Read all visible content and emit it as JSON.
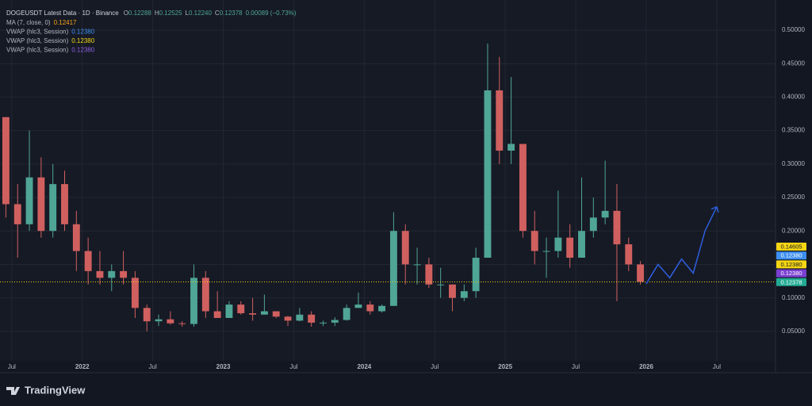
{
  "chart_data": {
    "type": "candlestick",
    "legend": {
      "title": "DOGEUSDT Latest Data · 1D · Binance",
      "ohlc": [
        {
          "label": "O",
          "value": "0.12288"
        },
        {
          "label": "H",
          "value": "0.12525"
        },
        {
          "label": "L",
          "value": "0.12240"
        },
        {
          "label": "C",
          "value": "0.12378"
        }
      ],
      "change": "0.00089 (−0.73%)",
      "indicators": [
        {
          "name": "MA (7, close, 0)",
          "value": "0.12417",
          "color": "#f7a21b"
        },
        {
          "name": "VWAP (hlc3, Session)",
          "value": "0.12380",
          "color": "#3d8ff0"
        },
        {
          "name": "VWAP (hlc3, Session)",
          "value": "0.12380",
          "color": "#f5d614"
        },
        {
          "name": "VWAP (hlc3, Session)",
          "value": "0.12380",
          "color": "#8e5fe0"
        }
      ]
    },
    "x": [
      "2021-06",
      "2021-07",
      "2021-08",
      "2021-09",
      "2021-10",
      "2021-11",
      "2021-12",
      "2022-01",
      "2022-02",
      "2022-03",
      "2022-04",
      "2022-05",
      "2022-06",
      "2022-07",
      "2022-08",
      "2022-09",
      "2022-10",
      "2022-11",
      "2022-12",
      "2023-01",
      "2023-02",
      "2023-03",
      "2023-04",
      "2023-05",
      "2023-06",
      "2023-07",
      "2023-08",
      "2023-09",
      "2023-10",
      "2023-11",
      "2023-12",
      "2024-01",
      "2024-02",
      "2024-03",
      "2024-04",
      "2024-05",
      "2024-06",
      "2024-07",
      "2024-08",
      "2024-09",
      "2024-10",
      "2024-11",
      "2024-12",
      "2025-01",
      "2025-02",
      "2025-03",
      "2025-04",
      "2025-05",
      "2025-06",
      "2025-07",
      "2025-08",
      "2025-09",
      "2025-10",
      "2025-11",
      "2025-12"
    ],
    "open": [
      0.37,
      0.24,
      0.21,
      0.28,
      0.2,
      0.27,
      0.21,
      0.17,
      0.14,
      0.13,
      0.14,
      0.13,
      0.085,
      0.065,
      0.068,
      0.062,
      0.061,
      0.13,
      0.08,
      0.07,
      0.09,
      0.077,
      0.075,
      0.08,
      0.072,
      0.066,
      0.075,
      0.063,
      0.063,
      0.067,
      0.085,
      0.09,
      0.08,
      0.088,
      0.2,
      0.15,
      0.15,
      0.12,
      0.12,
      0.1,
      0.11,
      0.16,
      0.41,
      0.32,
      0.33,
      0.2,
      0.17,
      0.17,
      0.19,
      0.16,
      0.2,
      0.22,
      0.23,
      0.18,
      0.15
    ],
    "high": [
      0.37,
      0.27,
      0.35,
      0.31,
      0.3,
      0.29,
      0.23,
      0.19,
      0.17,
      0.15,
      0.17,
      0.14,
      0.09,
      0.075,
      0.08,
      0.065,
      0.15,
      0.14,
      0.11,
      0.095,
      0.095,
      0.1,
      0.105,
      0.08,
      0.073,
      0.085,
      0.08,
      0.066,
      0.071,
      0.09,
      0.108,
      0.095,
      0.09,
      0.228,
      0.21,
      0.175,
      0.16,
      0.145,
      0.12,
      0.12,
      0.175,
      0.48,
      0.46,
      0.43,
      0.33,
      0.23,
      0.19,
      0.26,
      0.21,
      0.28,
      0.25,
      0.305,
      0.27,
      0.19,
      0.155
    ],
    "low": [
      0.22,
      0.16,
      0.2,
      0.19,
      0.19,
      0.2,
      0.14,
      0.12,
      0.12,
      0.11,
      0.12,
      0.07,
      0.05,
      0.058,
      0.06,
      0.057,
      0.057,
      0.07,
      0.07,
      0.07,
      0.075,
      0.066,
      0.075,
      0.07,
      0.058,
      0.065,
      0.057,
      0.058,
      0.058,
      0.066,
      0.085,
      0.075,
      0.078,
      0.088,
      0.12,
      0.12,
      0.115,
      0.1,
      0.08,
      0.095,
      0.1,
      0.16,
      0.3,
      0.3,
      0.19,
      0.15,
      0.13,
      0.16,
      0.145,
      0.16,
      0.19,
      0.21,
      0.095,
      0.14,
      0.12
    ],
    "close": [
      0.24,
      0.21,
      0.28,
      0.2,
      0.27,
      0.21,
      0.17,
      0.14,
      0.13,
      0.14,
      0.13,
      0.085,
      0.065,
      0.068,
      0.062,
      0.061,
      0.13,
      0.08,
      0.07,
      0.09,
      0.077,
      0.075,
      0.08,
      0.072,
      0.066,
      0.075,
      0.063,
      0.063,
      0.067,
      0.085,
      0.09,
      0.08,
      0.088,
      0.2,
      0.15,
      0.15,
      0.12,
      0.12,
      0.1,
      0.11,
      0.16,
      0.41,
      0.32,
      0.33,
      0.2,
      0.17,
      0.17,
      0.19,
      0.16,
      0.2,
      0.22,
      0.23,
      0.18,
      0.15,
      0.124
    ],
    "up_color": "#4fa596",
    "down_color": "#d0605f",
    "projection": {
      "x": [
        "2026-01",
        "2026-02",
        "2026-03",
        "2026-04",
        "2026-05",
        "2026-06",
        "2026-07"
      ],
      "values": [
        0.121,
        0.15,
        0.13,
        0.158,
        0.137,
        0.2,
        0.236
      ],
      "color": "#2f5fe0"
    },
    "last_price": 0.1238,
    "price_labels": [
      {
        "label": "0.14605",
        "color": "#f5d614",
        "text_color": "#131722"
      },
      {
        "label": "0.12380",
        "color": "#3d8ff0",
        "text_color": "#ffffff"
      },
      {
        "label": "0.12380",
        "color": "#f5d614",
        "text_color": "#131722"
      },
      {
        "label": "0.12380",
        "color": "#7b3fd1",
        "text_color": "#ffffff"
      },
      {
        "label": "0.12378",
        "color": "#22ab94",
        "text_color": "#ffffff"
      }
    ],
    "xlim": [
      "2021-06",
      "2026-12"
    ],
    "xticks": [
      {
        "value": "2021-07",
        "label": "Jul"
      },
      {
        "value": "2022-01",
        "label": "2022"
      },
      {
        "value": "2022-07",
        "label": "Jul"
      },
      {
        "value": "2023-01",
        "label": "2023"
      },
      {
        "value": "2023-07",
        "label": "Jul"
      },
      {
        "value": "2024-01",
        "label": "2024"
      },
      {
        "value": "2024-07",
        "label": "Jul"
      },
      {
        "value": "2025-01",
        "label": "2025"
      },
      {
        "value": "2025-07",
        "label": "Jul"
      },
      {
        "value": "2026-01",
        "label": "2026"
      },
      {
        "value": "2026-07",
        "label": "Jul"
      }
    ],
    "ylim": [
      0.006,
      0.545
    ],
    "yticks": [
      {
        "value": 0.05,
        "label": "0.05000"
      },
      {
        "value": 0.1,
        "label": "0.10000"
      },
      {
        "value": 0.15,
        "label": "0.15000"
      },
      {
        "value": 0.2,
        "label": "0.20000"
      },
      {
        "value": 0.25,
        "label": "0.25000"
      },
      {
        "value": 0.3,
        "label": "0.30000"
      },
      {
        "value": 0.35,
        "label": "0.35000"
      },
      {
        "value": 0.4,
        "label": "0.40000"
      },
      {
        "value": 0.45,
        "label": "0.45000"
      },
      {
        "value": 0.5,
        "label": "0.50000"
      }
    ],
    "grid": true,
    "brand": "TradingView"
  }
}
